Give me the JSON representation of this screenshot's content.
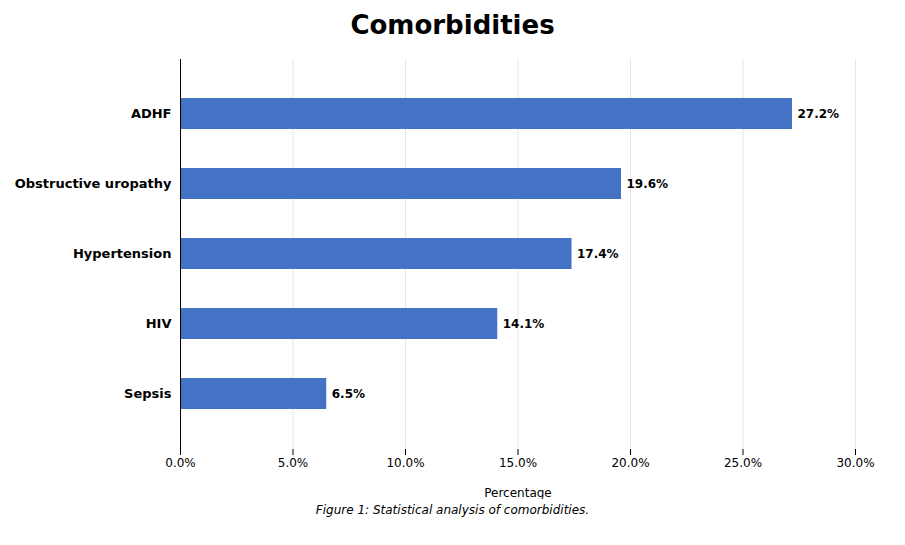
{
  "chart_data": {
    "type": "bar",
    "title": "Comorbidities",
    "caption": "Figure 1: Statistical analysis of comorbidities.",
    "orientation": "horizontal",
    "categories": [
      "ADHF",
      "Obstructive uropathy",
      "Hypertension",
      "HIV",
      "Sepsis"
    ],
    "values": [
      27.2,
      19.6,
      17.4,
      14.1,
      6.5
    ],
    "value_labels": [
      "27.2%",
      "19.6%",
      "17.4%",
      "14.1%",
      "6.5%"
    ],
    "data_labels": true,
    "color": "#4472C4",
    "xlabel": "Percentage",
    "xlim": [
      0,
      30
    ],
    "xticks": [
      {
        "value": 0,
        "label": "0.0%"
      },
      {
        "value": 5,
        "label": "5.0%"
      },
      {
        "value": 10,
        "label": "10.0%"
      },
      {
        "value": 15,
        "label": "15.0%"
      },
      {
        "value": 20,
        "label": "20.0%"
      },
      {
        "value": 25,
        "label": "25.0%"
      },
      {
        "value": 30,
        "label": "30.0%"
      }
    ],
    "grid": true
  }
}
